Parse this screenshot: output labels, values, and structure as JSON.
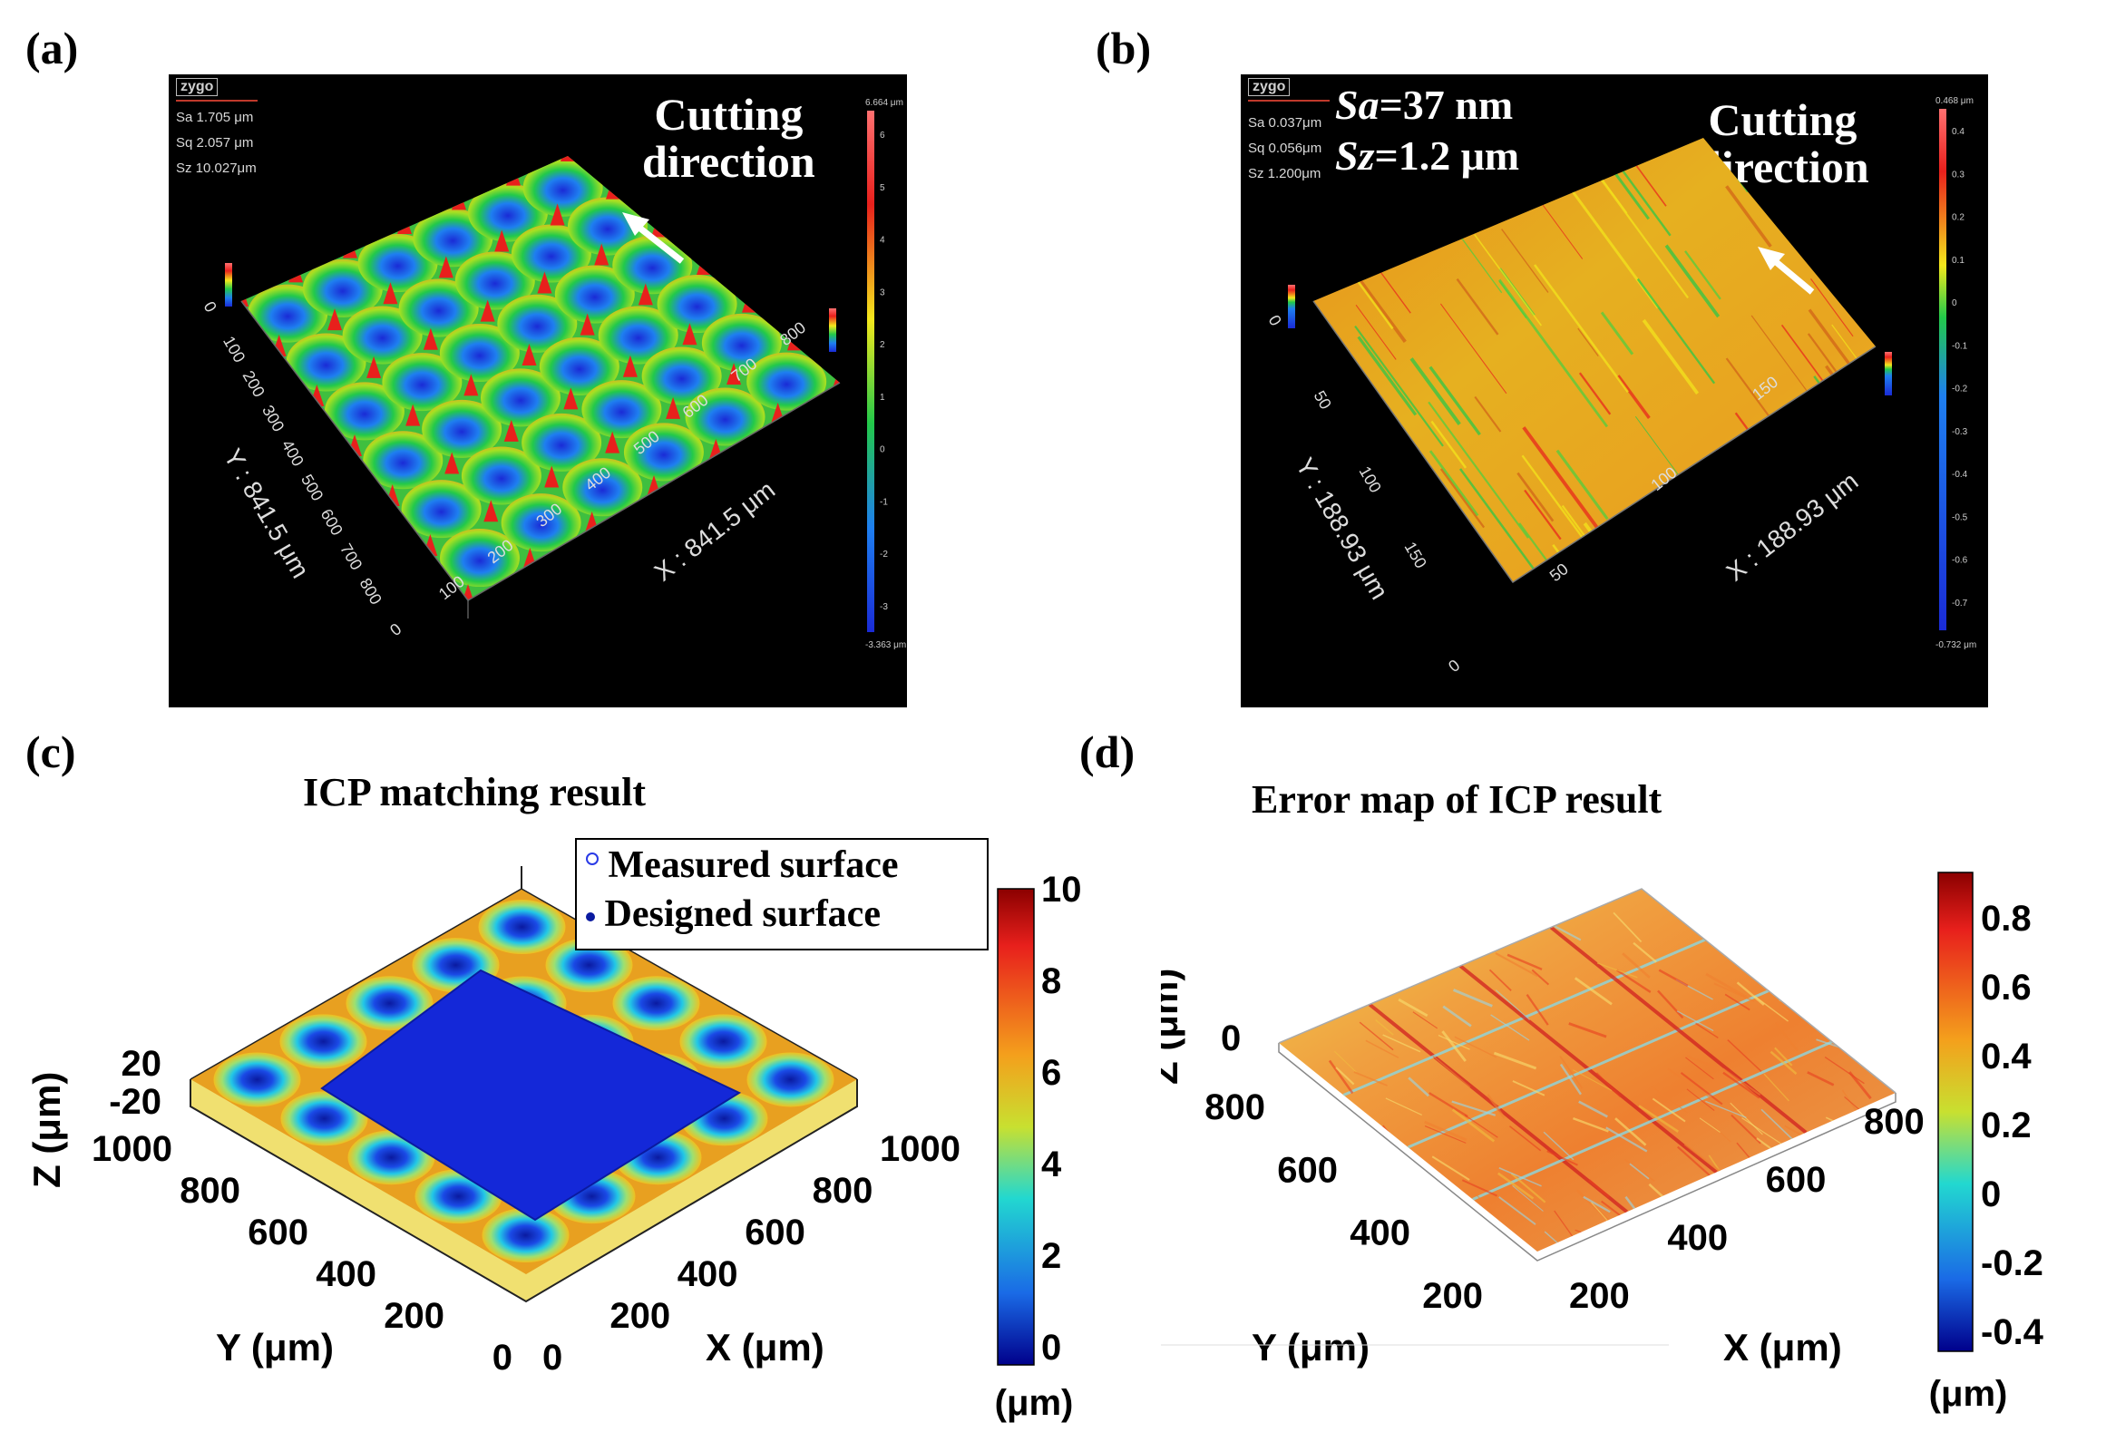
{
  "panels": {
    "a": {
      "label": "(a)",
      "logo": "zygo",
      "stats": [
        "Sa 1.705  μm",
        "Sq 2.057  μm",
        "Sz 10.027μm"
      ],
      "annotation": [
        "Cutting",
        "direction"
      ],
      "x_axis_label": "X : 841.5 μm",
      "y_axis_label": "Y : 841.5 μm",
      "x_ticks": [
        "0",
        "100",
        "200",
        "300",
        "400",
        "500",
        "600",
        "700",
        "800"
      ],
      "y_ticks": [
        "0",
        "100",
        "200",
        "300",
        "400",
        "500",
        "600",
        "700",
        "800"
      ],
      "colorbar_top": "6.664 μm",
      "colorbar_bottom": "-3.363 μm",
      "colorbar_ticks": [
        "6",
        "5",
        "4",
        "3",
        "2",
        "1",
        "0",
        "-1",
        "-2",
        "-3"
      ]
    },
    "b": {
      "label": "(b)",
      "logo": "zygo",
      "stats": [
        "Sa 0.037μm",
        "Sq 0.056μm",
        "Sz 1.200μm"
      ],
      "sa_symbol": "Sa",
      "sa_value": "=37 nm",
      "sz_symbol": "Sz",
      "sz_value": "=1.2 μm",
      "annotation": [
        "Cutting",
        "direction"
      ],
      "x_axis_label": "X : 188.93 μm",
      "y_axis_label": "Y : 188.93 μm",
      "x_ticks": [
        "0",
        "50",
        "100",
        "150"
      ],
      "y_ticks": [
        "0",
        "50",
        "100",
        "150"
      ],
      "colorbar_top": "0.468 μm",
      "colorbar_bottom": "-0.732 μm",
      "colorbar_ticks": [
        "0.4",
        "0.3",
        "0.2",
        "0.1",
        "0",
        "-0.1",
        "-0.2",
        "-0.3",
        "-0.4",
        "-0.5",
        "-0.6",
        "-0.7"
      ]
    },
    "c": {
      "label": "(c)",
      "title": "ICP matching result",
      "legend": [
        "Measured surface",
        "Designed surface"
      ],
      "z_axis_label": "Z (μm)",
      "z_ticks": [
        "20",
        "-20"
      ],
      "x_axis_label": "X (μm)",
      "y_axis_label": "Y (μm)",
      "x_ticks": [
        "0",
        "200",
        "400",
        "600",
        "800",
        "1000"
      ],
      "y_ticks": [
        "1000",
        "800",
        "600",
        "400",
        "200",
        "0"
      ],
      "colorbar_ticks": [
        "10",
        "8",
        "6",
        "4",
        "2",
        "0"
      ],
      "colorbar_unit": "(μm)"
    },
    "d": {
      "label": "(d)",
      "title": "Error map of ICP result",
      "z_axis_label": "Z (μm)",
      "z_ticks": [
        "0"
      ],
      "x_axis_label": "X (μm)",
      "y_axis_label": "Y (μm)",
      "x_ticks": [
        "200",
        "400",
        "600",
        "800"
      ],
      "y_ticks": [
        "800",
        "600",
        "400",
        "200"
      ],
      "colorbar_ticks": [
        "0.8",
        "0.6",
        "0.4",
        "0.2",
        "0",
        "-0.2",
        "-0.4"
      ],
      "colorbar_unit": "(μm)"
    }
  },
  "colors": {
    "background": "#ffffff",
    "panel_bg": "#000000",
    "jet_high": "#e8201c",
    "jet_low": "#1a2bd6"
  }
}
